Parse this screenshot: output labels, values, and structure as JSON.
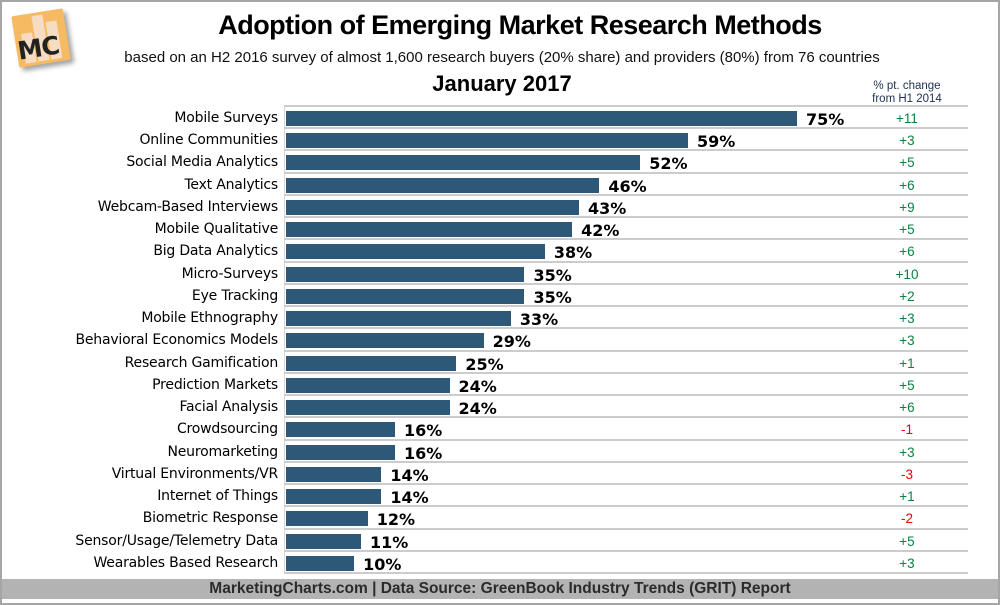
{
  "header": {
    "logo_text": "MC",
    "title": "Adoption of Emerging Market Research Methods",
    "subtitle": "based on an H2 2016 survey of almost 1,600 research buyers (20% share) and providers (80%) from 76 countries",
    "period_label": "January 2017",
    "change_note_line1": "% pt. change",
    "change_note_line2": "from H1 2014"
  },
  "chart_data": {
    "type": "bar",
    "orientation": "horizontal",
    "title": "January 2017",
    "unit": "%",
    "xlim": [
      0,
      100
    ],
    "grid": false,
    "legend": "none",
    "categories": [
      "Mobile Surveys",
      "Online Communities",
      "Social Media Analytics",
      "Text Analytics",
      "Webcam-Based Interviews",
      "Mobile Qualitative",
      "Big Data Analytics",
      "Micro-Surveys",
      "Eye Tracking",
      "Mobile Ethnography",
      "Behavioral Economics Models",
      "Research Gamification",
      "Prediction Markets",
      "Facial Analysis",
      "Crowdsourcing",
      "Neuromarketing",
      "Virtual Environments/VR",
      "Internet of Things",
      "Biometric Response",
      "Sensor/Usage/Telemetry Data",
      "Wearables Based Research"
    ],
    "values": [
      75,
      59,
      52,
      46,
      43,
      42,
      38,
      35,
      35,
      33,
      29,
      25,
      24,
      24,
      16,
      16,
      14,
      14,
      12,
      11,
      10
    ],
    "changes": [
      11,
      3,
      5,
      6,
      9,
      5,
      6,
      10,
      2,
      3,
      3,
      1,
      5,
      6,
      -1,
      3,
      -3,
      1,
      -2,
      5,
      3
    ],
    "colors": {
      "bar": "#2e5877",
      "positive_change": "#0c8040",
      "negative_change": "#f20000",
      "separator": "#cccccc",
      "footer_background": "#b3b3b3",
      "logo_orange": "#f6ba62",
      "logo_bars": "#f5dcc3"
    }
  },
  "footer": {
    "text": "MarketingCharts.com | Data Source: GreenBook Industry Trends (GRIT) Report"
  }
}
